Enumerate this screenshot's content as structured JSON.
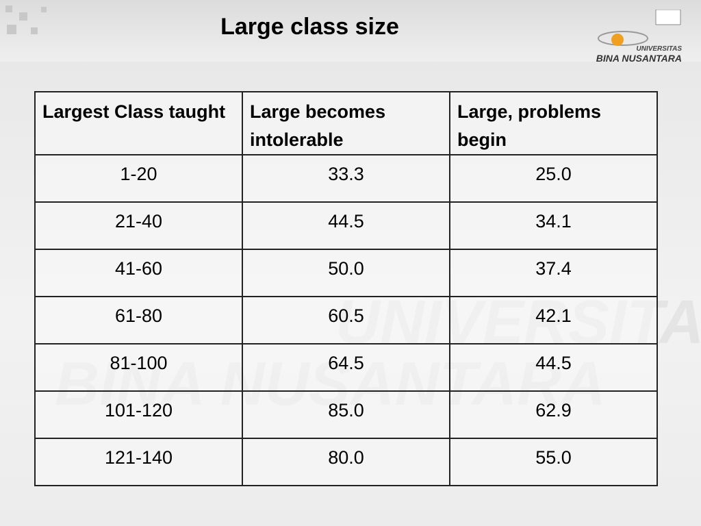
{
  "header": {
    "title": "Large class size",
    "logo_top": "UNIVERSITAS",
    "logo_bottom": "BINA NUSANTARA"
  },
  "table": {
    "columns": [
      "Largest Class taught",
      "Large becomes intolerable",
      "Large, problems begin"
    ],
    "rows": [
      [
        "1-20",
        "33.3",
        "25.0"
      ],
      [
        "21-40",
        "44.5",
        "34.1"
      ],
      [
        "41-60",
        "50.0",
        "37.4"
      ],
      [
        "61-80",
        "60.5",
        "42.1"
      ],
      [
        "81-100",
        "64.5",
        "44.5"
      ],
      [
        "101-120",
        "85.0",
        "62.9"
      ],
      [
        "121-140",
        "80.0",
        "55.0"
      ]
    ]
  }
}
